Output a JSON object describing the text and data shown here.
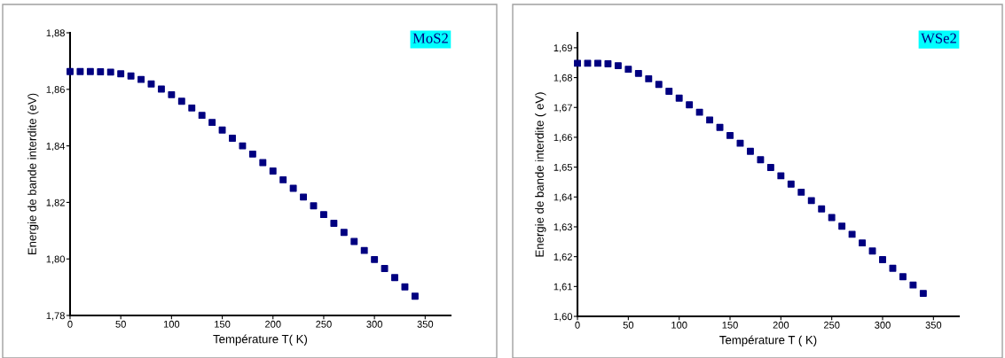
{
  "chart_data": [
    {
      "type": "scatter",
      "xlabel": "Température T( K)",
      "ylabel": "Energie de bande interdite (eV)",
      "annotations": [
        "MoS2"
      ],
      "marker": "square",
      "x": [
        0,
        10,
        20,
        30,
        40,
        50,
        60,
        70,
        80,
        90,
        100,
        110,
        120,
        130,
        140,
        150,
        160,
        170,
        180,
        190,
        200,
        210,
        220,
        230,
        240,
        250,
        260,
        270,
        280,
        290,
        300,
        310,
        320,
        330,
        340
      ],
      "series": [
        {
          "color": "#000080",
          "values": [
            1.8663,
            1.8663,
            1.8663,
            1.8662,
            1.8661,
            1.8655,
            1.8647,
            1.8635,
            1.8619,
            1.8601,
            1.8581,
            1.8558,
            1.8534,
            1.8508,
            1.8483,
            1.8456,
            1.8427,
            1.84,
            1.8371,
            1.8341,
            1.8311,
            1.828,
            1.825,
            1.8219,
            1.8188,
            1.8157,
            1.8126,
            1.8094,
            1.8062,
            1.803,
            1.7998,
            1.7966,
            1.7934,
            1.7901,
            1.7868
          ]
        }
      ],
      "xlim": [
        0,
        375
      ],
      "xticks": [
        0,
        50,
        100,
        150,
        200,
        250,
        300,
        350
      ],
      "ylim": [
        1.78,
        1.88
      ],
      "yticks": [
        {
          "value": 1.78,
          "label": "1,78"
        },
        {
          "value": 1.8,
          "label": "1,80"
        },
        {
          "value": 1.82,
          "label": "1,82"
        },
        {
          "value": 1.84,
          "label": "1,84"
        },
        {
          "value": 1.86,
          "label": "1,86"
        },
        {
          "value": 1.88,
          "label": "1,88"
        }
      ]
    },
    {
      "type": "scatter",
      "xlabel": "Température T ( K)",
      "ylabel": "Energie de bande interdite ( eV)",
      "annotations": [
        "WSe2"
      ],
      "marker": "square",
      "x": [
        0,
        10,
        20,
        30,
        40,
        50,
        60,
        70,
        80,
        90,
        100,
        110,
        120,
        130,
        140,
        150,
        160,
        170,
        180,
        190,
        200,
        210,
        220,
        230,
        240,
        250,
        260,
        270,
        280,
        290,
        300,
        310,
        320,
        330,
        340
      ],
      "series": [
        {
          "color": "#000080",
          "values": [
            1.6848,
            1.6848,
            1.6848,
            1.6846,
            1.684,
            1.6828,
            1.6814,
            1.6796,
            1.6777,
            1.6754,
            1.6731,
            1.6709,
            1.6684,
            1.6658,
            1.6633,
            1.6606,
            1.658,
            1.6553,
            1.6525,
            1.6499,
            1.6471,
            1.6443,
            1.6416,
            1.6388,
            1.636,
            1.6331,
            1.6302,
            1.6275,
            1.6246,
            1.6219,
            1.619,
            1.6161,
            1.6133,
            1.6105,
            1.6077
          ]
        }
      ],
      "xlim": [
        0,
        375
      ],
      "xticks": [
        0,
        50,
        100,
        150,
        200,
        250,
        300,
        350
      ],
      "ylim": [
        1.6,
        1.695
      ],
      "yticks": [
        {
          "value": 1.6,
          "label": "1,60"
        },
        {
          "value": 1.61,
          "label": "1,61"
        },
        {
          "value": 1.62,
          "label": "1,62"
        },
        {
          "value": 1.63,
          "label": "1,63"
        },
        {
          "value": 1.64,
          "label": "1,64"
        },
        {
          "value": 1.65,
          "label": "1,65"
        },
        {
          "value": 1.66,
          "label": "1,66"
        },
        {
          "value": 1.67,
          "label": "1,67"
        },
        {
          "value": 1.68,
          "label": "1,68"
        },
        {
          "value": 1.69,
          "label": "1,69"
        }
      ]
    }
  ]
}
